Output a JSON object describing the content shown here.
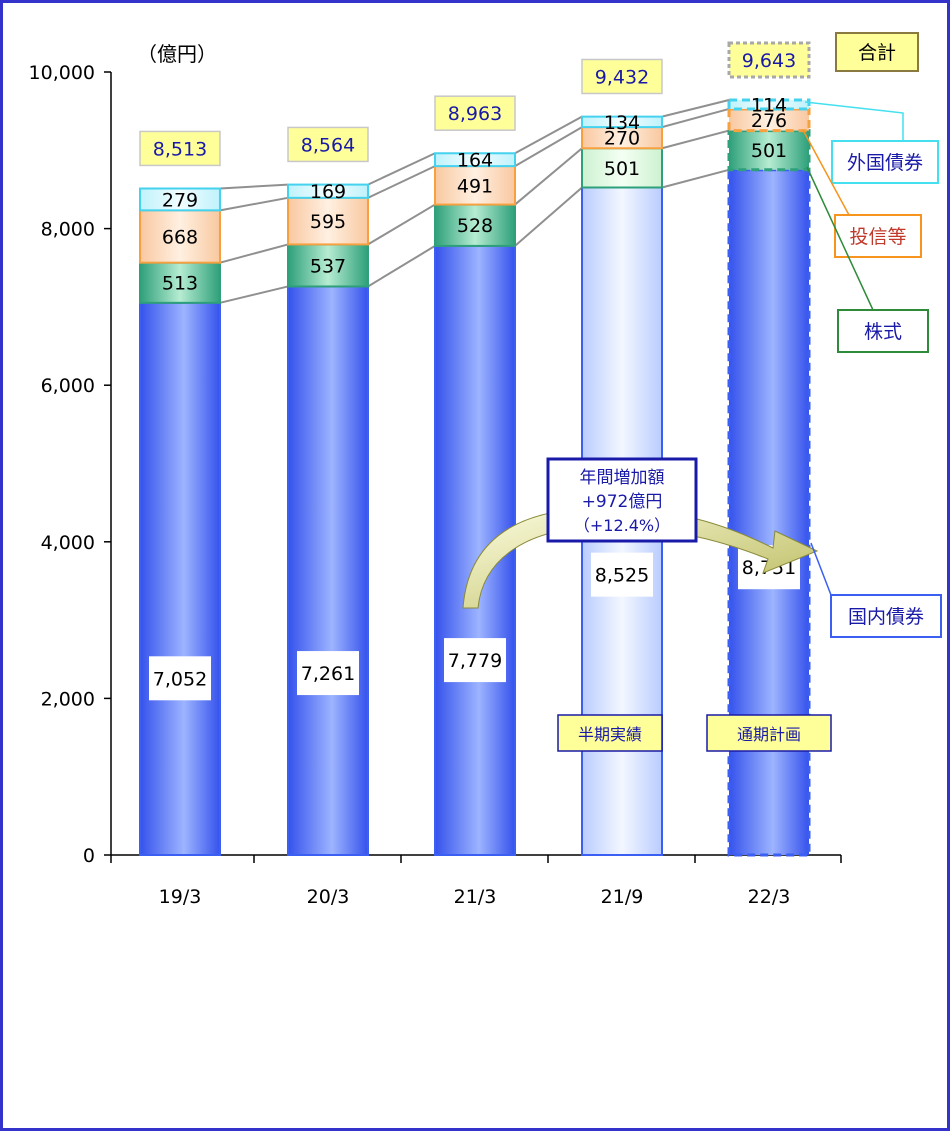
{
  "chart_data": {
    "type": "bar",
    "stacked": true,
    "unit_label": "（億円）",
    "categories": [
      "19/3",
      "20/3",
      "21/3",
      "21/9",
      "22/3"
    ],
    "ylim": [
      0,
      10000
    ],
    "yticks": [
      0,
      2000,
      4000,
      6000,
      8000,
      10000
    ],
    "ytick_labels": [
      "0",
      "2,000",
      "4,000",
      "6,000",
      "8,000",
      "10,000"
    ],
    "series": [
      {
        "name": "国内債券",
        "values": [
          7052,
          7261,
          7779,
          8525,
          8751
        ],
        "labels": [
          "7,052",
          "7,261",
          "7,779",
          "8,525",
          "8,751"
        ]
      },
      {
        "name": "株式",
        "values": [
          513,
          537,
          528,
          501,
          501
        ],
        "labels": [
          "513",
          "537",
          "528",
          "501",
          "501"
        ]
      },
      {
        "name": "投信等",
        "values": [
          668,
          595,
          491,
          270,
          276
        ],
        "labels": [
          "668",
          "595",
          "491",
          "270",
          "276"
        ]
      },
      {
        "name": "外国債券",
        "values": [
          279,
          169,
          164,
          134,
          114
        ],
        "labels": [
          "279",
          "169",
          "164",
          "134",
          "114"
        ]
      }
    ],
    "totals": {
      "name": "合計",
      "values": [
        8513,
        8564,
        8963,
        9432,
        9643
      ],
      "labels": [
        "8,513",
        "8,564",
        "8,963",
        "9,432",
        "9,643"
      ]
    },
    "annotations": {
      "increase": [
        "年間増加額",
        "+972億円",
        "（+12.4%）"
      ],
      "half_year": "半期実績",
      "full_year": "通期計画"
    },
    "colors": {
      "domestic": "#3a5ff2",
      "stock": "#2ea07a",
      "fund": "#f7a040",
      "foreign": "#44d2ee",
      "total_box": "#ffff99",
      "total_text": "#1a1aa8",
      "legend_domestic": "#3a5ff2",
      "legend_stock": "#2e8b3a",
      "legend_fund": "#f7941d",
      "legend_foreign": "#44e0f0",
      "legend_total": "#8a7a40"
    },
    "grid": false,
    "legend_position": "right"
  }
}
